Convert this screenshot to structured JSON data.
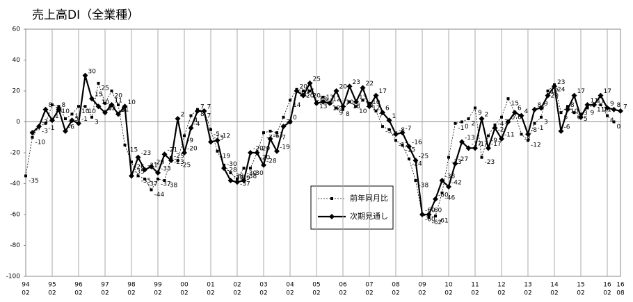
{
  "chart_data": {
    "type": "line",
    "title": "売上高DI（全業種）",
    "categories": [
      [
        "94",
        "02"
      ],
      null,
      null,
      null,
      [
        "95",
        "02"
      ],
      null,
      null,
      null,
      [
        "96",
        "02"
      ],
      null,
      null,
      null,
      [
        "97",
        "02"
      ],
      null,
      null,
      null,
      [
        "98",
        "02"
      ],
      null,
      null,
      null,
      [
        "99",
        "02"
      ],
      null,
      null,
      null,
      [
        "00",
        "02"
      ],
      null,
      null,
      null,
      [
        "01",
        "02"
      ],
      null,
      null,
      null,
      [
        "02",
        "02"
      ],
      null,
      null,
      null,
      [
        "03",
        "02"
      ],
      null,
      null,
      null,
      [
        "04",
        "02"
      ],
      null,
      null,
      null,
      [
        "05",
        "02"
      ],
      null,
      null,
      null,
      [
        "06",
        "02"
      ],
      null,
      null,
      null,
      [
        "07",
        "02"
      ],
      null,
      null,
      null,
      [
        "08",
        "02"
      ],
      null,
      null,
      null,
      [
        "09",
        "02"
      ],
      null,
      null,
      null,
      [
        "10",
        "02"
      ],
      null,
      null,
      null,
      [
        "11",
        "02"
      ],
      null,
      null,
      null,
      [
        "12",
        "02"
      ],
      null,
      null,
      null,
      [
        "13",
        "02"
      ],
      null,
      null,
      null,
      [
        "14",
        "02"
      ],
      null,
      null,
      null,
      [
        "15",
        "02"
      ],
      null,
      null,
      null,
      [
        "16",
        "02"
      ],
      null,
      [
        "16",
        "08"
      ]
    ],
    "series": [
      {
        "name": "前年同月比",
        "color": "#000000",
        "style": "dashed",
        "values": [
          -35,
          -10,
          -3,
          -1,
          11,
          10,
          2,
          5,
          10,
          10,
          3,
          25,
          12,
          20,
          11,
          -15,
          -26,
          -35,
          -37,
          -44,
          -37,
          -38,
          -23,
          -25,
          -9,
          4,
          8,
          7,
          -5,
          -19,
          -28,
          -33,
          -37,
          -30,
          -30,
          -20,
          -7,
          -6,
          -7,
          3,
          14,
          21,
          20,
          20,
          13,
          16,
          12,
          9,
          8,
          13,
          10,
          14,
          12,
          7,
          -3,
          -5,
          -12,
          -15,
          -24,
          -38,
          -60,
          -62,
          -61,
          -46,
          -23,
          -1,
          0,
          2,
          9,
          -23,
          -9,
          -2,
          3,
          15,
          6,
          -8,
          -12,
          -1,
          3,
          20,
          24,
          6,
          10,
          6,
          5,
          9,
          11,
          11,
          4,
          0,
          null
        ]
      },
      {
        "name": "次期見通し",
        "color": "#000000",
        "style": "solid",
        "values": [
          null,
          -7,
          -3,
          8,
          1,
          8,
          -6,
          1,
          -1,
          30,
          15,
          10,
          6,
          11,
          5,
          10,
          -35,
          -23,
          -31,
          -29,
          -33,
          -21,
          -25,
          2,
          -20,
          -4,
          7,
          7,
          -13,
          -12,
          -30,
          -38,
          -39,
          -38,
          -20,
          -20,
          -28,
          -11,
          -19,
          -3,
          0,
          20,
          17,
          25,
          12,
          13,
          12,
          20,
          10,
          23,
          13,
          22,
          10,
          17,
          6,
          1,
          -8,
          -7,
          -16,
          -25,
          -60,
          -60,
          -50,
          -38,
          -42,
          -27,
          -13,
          -17,
          -17,
          2,
          -17,
          -4,
          -11,
          0,
          6,
          4,
          -8,
          8,
          9,
          17,
          23,
          -6,
          8,
          17,
          3,
          11,
          11,
          17,
          9,
          8,
          7
        ]
      }
    ],
    "ylim": [
      -100,
      60
    ],
    "yticks": [
      -100,
      -80,
      -60,
      -40,
      -20,
      0,
      20,
      40,
      60
    ],
    "grid": true,
    "legend": "center"
  }
}
